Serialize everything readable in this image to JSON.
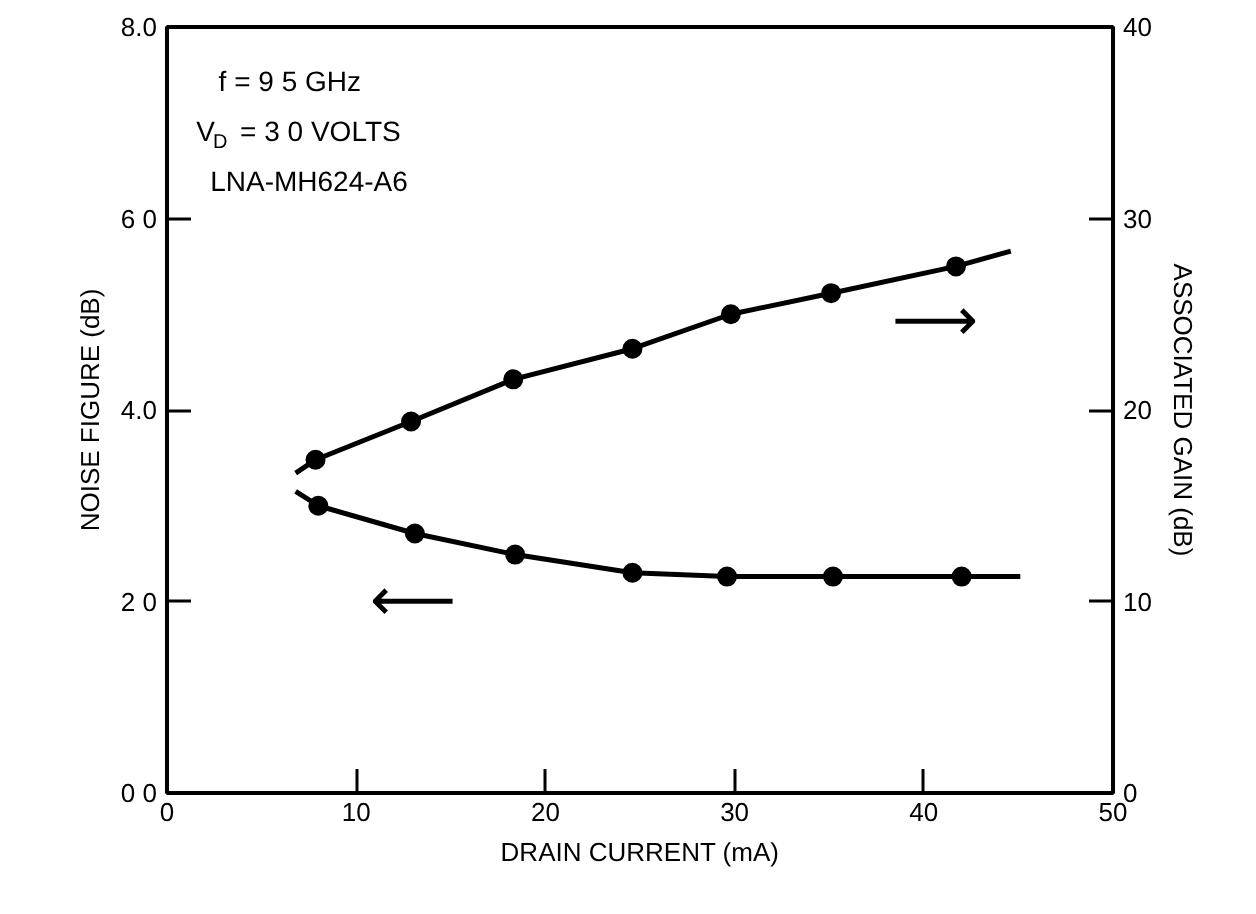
{
  "chart_data": {
    "type": "scatter",
    "xlabel": "DRAIN CURRENT (mA)",
    "ylabel": "NOISE FIGURE (dB)",
    "y2label": "ASSOCIATED GAIN (dB)",
    "xlim": [
      0,
      50
    ],
    "xticks": [
      0,
      10,
      20,
      30,
      40,
      50
    ],
    "ylim": [
      0,
      8
    ],
    "yticks": [
      {
        "value": 0,
        "label": "0 0"
      },
      {
        "value": 2,
        "label": "2 0"
      },
      {
        "value": 4,
        "label": "4.0"
      },
      {
        "value": 6,
        "label": "6 0"
      },
      {
        "value": 8,
        "label": "8.0"
      }
    ],
    "y2lim": [
      0,
      40
    ],
    "y2ticks": [
      0,
      10,
      20,
      30,
      40
    ],
    "annotations": [
      "f = 9 5 GHz",
      "V$_{D}$ = 3 0 VOLTS",
      "LNA-MH624-A6",
      "⟵",
      "⟶"
    ],
    "series": [
      {
        "marker": "circle",
        "color": "#000000",
        "x": [
          8.0,
          13.1,
          18.4,
          24.6,
          29.6,
          35.2,
          42.0
        ],
        "values": [
          3.0,
          2.71,
          2.49,
          2.3,
          2.26,
          2.26,
          2.26
        ]
      },
      {
        "type": "line",
        "marker": "none",
        "line_style": "solid",
        "color": "#000000",
        "x": [
          6.8,
          8.0,
          13.1,
          18.4,
          24.6,
          29.6,
          35.2,
          42.0,
          45.1
        ],
        "values": [
          3.15,
          3.0,
          2.71,
          2.49,
          2.3,
          2.26,
          2.26,
          2.26,
          2.26
        ]
      },
      {
        "marker": "circle",
        "axis": "y2",
        "color": "#000000",
        "x": [
          7.85,
          12.9,
          18.3,
          24.6,
          29.8,
          35.1,
          41.7
        ],
        "values": [
          17.4,
          19.4,
          21.6,
          23.2,
          25.0,
          26.1,
          27.5
        ]
      },
      {
        "type": "line",
        "marker": "none",
        "line_style": "solid",
        "axis": "y2",
        "color": "#000000",
        "x": [
          6.8,
          7.85,
          12.9,
          18.3,
          24.6,
          29.8,
          35.1,
          41.7,
          44.6
        ],
        "values": [
          16.7,
          17.4,
          19.4,
          21.6,
          23.2,
          25.0,
          26.1,
          27.5,
          28.3
        ]
      }
    ]
  }
}
